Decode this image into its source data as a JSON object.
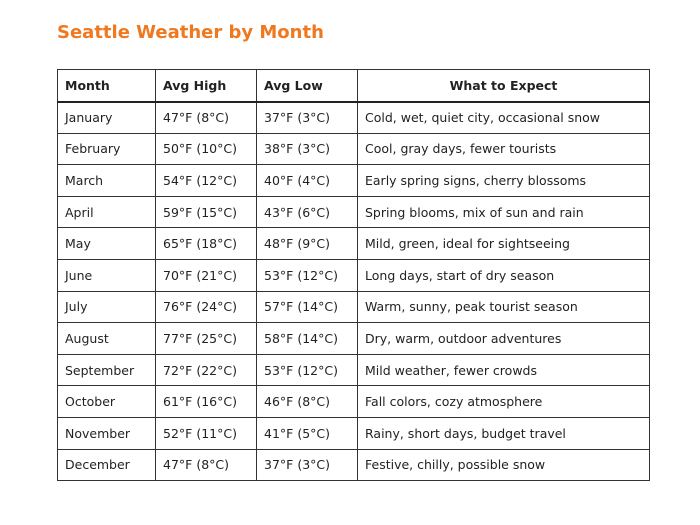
{
  "title": "Seattle Weather by Month",
  "table": {
    "header": [
      "Month",
      "Avg High",
      "Avg Low",
      "What to Expect"
    ],
    "rows": [
      [
        "January",
        "47°F (8°C)",
        "37°F (3°C)",
        "Cold, wet, quiet city, occasional snow"
      ],
      [
        "February",
        "50°F (10°C)",
        "38°F (3°C)",
        "Cool, gray days, fewer tourists"
      ],
      [
        "March",
        "54°F (12°C)",
        "40°F (4°C)",
        "Early spring signs, cherry blossoms"
      ],
      [
        "April",
        "59°F (15°C)",
        "43°F (6°C)",
        "Spring blooms, mix of sun and rain"
      ],
      [
        "May",
        "65°F (18°C)",
        "48°F (9°C)",
        "Mild, green, ideal for sightseeing"
      ],
      [
        "June",
        "70°F (21°C)",
        "53°F (12°C)",
        "Long days, start of dry season"
      ],
      [
        "July",
        "76°F (24°C)",
        "57°F (14°C)",
        "Warm, sunny, peak tourist season"
      ],
      [
        "August",
        "77°F (25°C)",
        "58°F (14°C)",
        "Dry, warm, outdoor adventures"
      ],
      [
        "September",
        "72°F (22°C)",
        "53°F (12°C)",
        "Mild weather, fewer crowds"
      ],
      [
        "October",
        "61°F (16°C)",
        "46°F (8°C)",
        "Fall colors, cozy atmosphere"
      ],
      [
        "November",
        "52°F (11°C)",
        "41°F (5°C)",
        "Rainy, short days, budget travel"
      ],
      [
        "December",
        "47°F (8°C)",
        "37°F (3°C)",
        "Festive, chilly, possible snow"
      ]
    ]
  }
}
